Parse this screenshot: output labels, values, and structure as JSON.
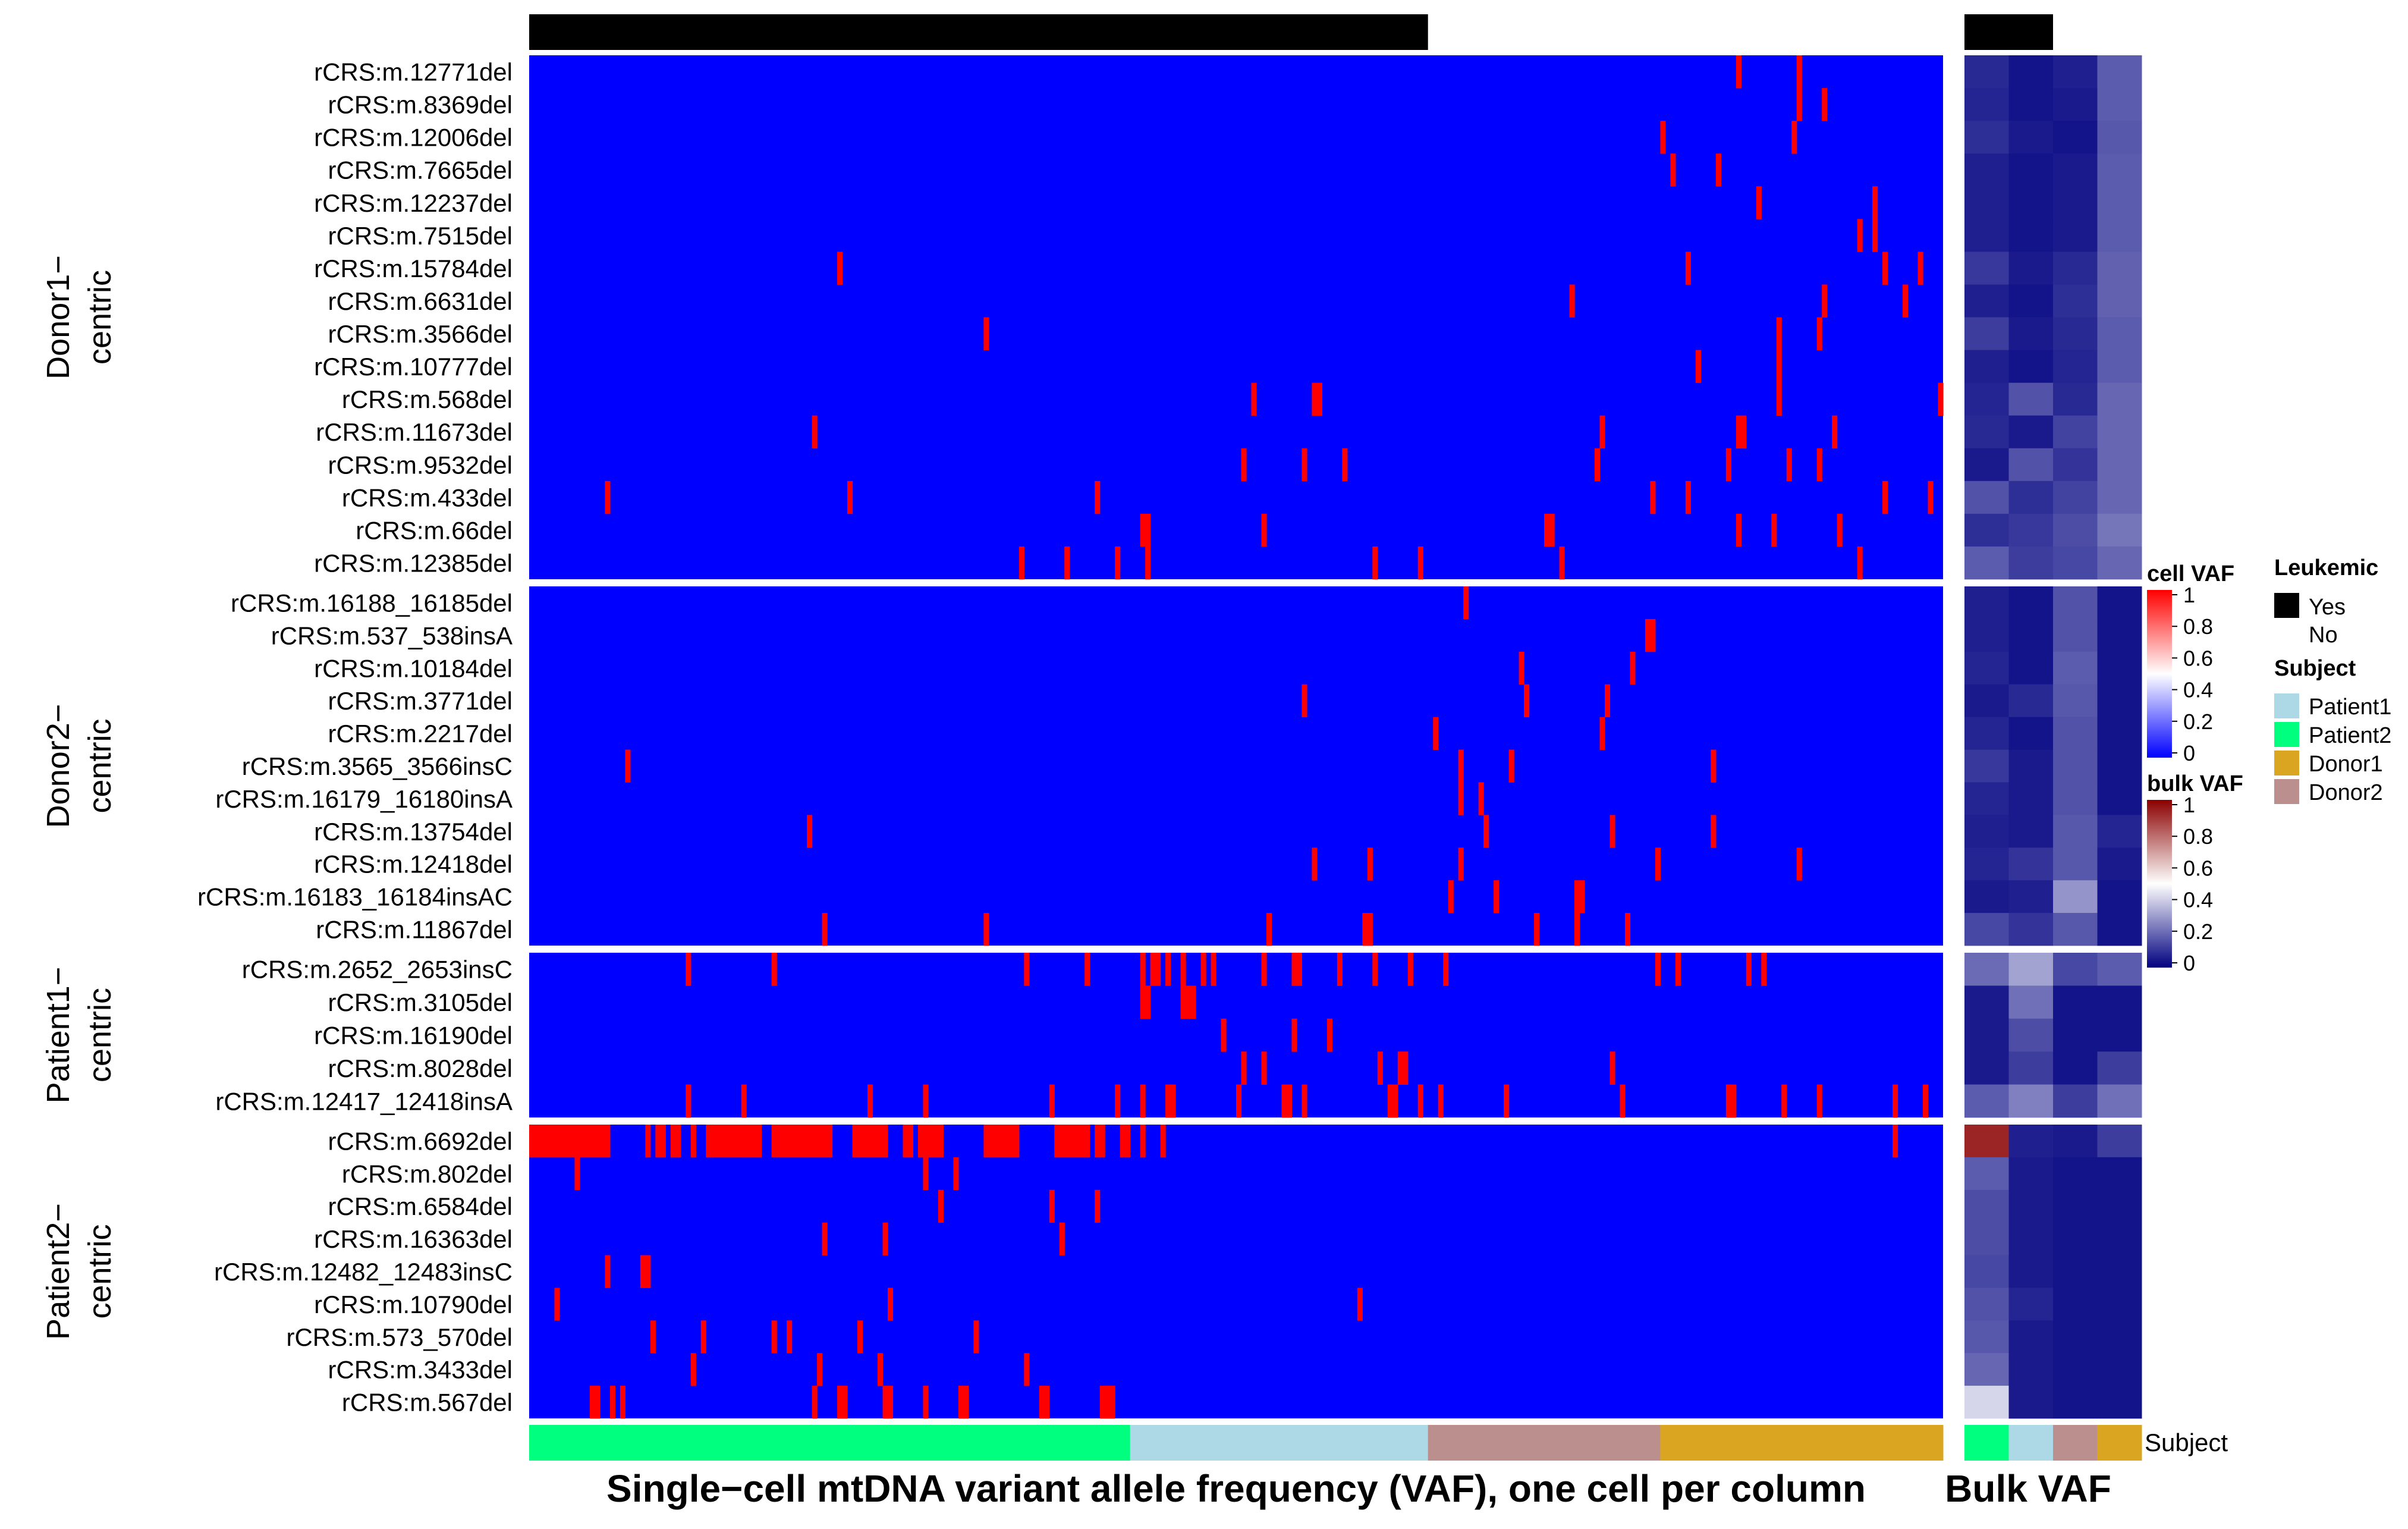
{
  "chart_data": {
    "type": "heatmap",
    "xlabel": "Single−cell mtDNA variant allele frequency (VAF), one cell per column",
    "bulk_label": "Bulk VAF",
    "subject_row_label": "Subject",
    "n_cells": 280,
    "blocks": [
      {
        "title_line1": "Donor1−",
        "title_line2": "centric",
        "variants": [
          "rCRS:m.12771del",
          "rCRS:m.8369del",
          "rCRS:m.12006del",
          "rCRS:m.7665del",
          "rCRS:m.12237del",
          "rCRS:m.7515del",
          "rCRS:m.15784del",
          "rCRS:m.6631del",
          "rCRS:m.3566del",
          "rCRS:m.10777del",
          "rCRS:m.568del",
          "rCRS:m.11673del",
          "rCRS:m.9532del",
          "rCRS:m.433del",
          "rCRS:m.66del",
          "rCRS:m.12385del"
        ]
      },
      {
        "title_line1": "Donor2−",
        "title_line2": "centric",
        "variants": [
          "rCRS:m.16188_16185del",
          "rCRS:m.537_538insA",
          "rCRS:m.10184del",
          "rCRS:m.3771del",
          "rCRS:m.2217del",
          "rCRS:m.3565_3566insC",
          "rCRS:m.16179_16180insA",
          "rCRS:m.13754del",
          "rCRS:m.12418del",
          "rCRS:m.16183_16184insAC",
          "rCRS:m.11867del"
        ]
      },
      {
        "title_line1": "Patient1−",
        "title_line2": "centric",
        "variants": [
          "rCRS:m.2652_2653insC",
          "rCRS:m.3105del",
          "rCRS:m.16190del",
          "rCRS:m.8028del",
          "rCRS:m.12417_12418insA"
        ]
      },
      {
        "title_line1": "Patient2−",
        "title_line2": "centric",
        "variants": [
          "rCRS:m.6692del",
          "rCRS:m.802del",
          "rCRS:m.6584del",
          "rCRS:m.16363del",
          "rCRS:m.12482_12483insC",
          "rCRS:m.10790del",
          "rCRS:m.573_570del",
          "rCRS:m.3433del",
          "rCRS:m.567del"
        ]
      }
    ],
    "cells_by_subject": [
      {
        "subject": "Patient2",
        "count": 119
      },
      {
        "subject": "Patient1",
        "count": 59
      },
      {
        "subject": "Donor2",
        "count": 46
      },
      {
        "subject": "Donor1",
        "count": 56
      }
    ],
    "leukemic_cells": 178,
    "bulk_columns": [
      {
        "subject": "Patient2",
        "leukemic": "Yes"
      },
      {
        "subject": "Patient1",
        "leukemic": "Yes"
      },
      {
        "subject": "Donor2",
        "leukemic": "No"
      },
      {
        "subject": "Donor1",
        "leukemic": "No"
      }
    ],
    "cell_vaf_positive": [
      [
        239,
        251
      ],
      [
        251,
        256
      ],
      [
        224,
        250
      ],
      [
        226,
        235
      ],
      [
        243,
        266
      ],
      [
        263,
        266
      ],
      [
        61,
        229,
        268,
        275
      ],
      [
        206,
        256,
        272
      ],
      [
        90,
        247,
        255
      ],
      [
        231,
        247
      ],
      [
        143,
        155,
        156,
        247,
        279
      ],
      [
        56,
        212,
        239,
        240,
        258
      ],
      [
        141,
        153,
        161,
        211,
        237,
        249,
        255
      ],
      [
        15,
        63,
        112,
        222,
        229,
        268,
        277
      ],
      [
        121,
        122,
        145,
        201,
        202,
        239,
        246,
        259
      ],
      [
        97,
        106,
        116,
        122,
        167,
        176,
        204,
        263
      ],
      [
        185
      ],
      [
        221,
        222
      ],
      [
        196,
        218
      ],
      [
        153,
        197,
        213
      ],
      [
        179,
        212
      ],
      [
        19,
        184,
        194,
        234
      ],
      [
        184,
        188
      ],
      [
        55,
        189,
        214,
        234
      ],
      [
        155,
        166,
        184,
        223,
        251
      ],
      [
        182,
        191,
        207,
        208
      ],
      [
        58,
        90,
        146,
        165,
        166,
        199,
        207,
        217
      ],
      [
        31,
        48,
        98,
        110,
        121,
        123,
        124,
        126,
        129,
        133,
        135,
        145,
        151,
        152,
        160,
        167,
        174,
        181,
        223,
        227,
        241,
        244
      ],
      [
        121,
        122,
        129,
        130,
        131
      ],
      [
        137,
        151,
        158
      ],
      [
        141,
        145,
        168,
        172,
        173,
        214
      ],
      [
        31,
        42,
        67,
        78,
        103,
        116,
        121,
        126,
        127,
        140,
        149,
        150,
        153,
        170,
        171,
        176,
        180,
        193,
        216,
        237,
        238,
        248,
        255,
        270,
        276
      ],
      [
        0,
        1,
        2,
        3,
        4,
        5,
        6,
        7,
        8,
        9,
        10,
        11,
        12,
        13,
        14,
        15,
        23,
        25,
        26,
        28,
        29,
        32,
        35,
        36,
        37,
        38,
        39,
        40,
        41,
        42,
        43,
        44,
        45,
        48,
        49,
        50,
        51,
        52,
        53,
        54,
        55,
        56,
        57,
        58,
        59,
        64,
        65,
        66,
        67,
        68,
        69,
        70,
        74,
        75,
        77,
        78,
        79,
        80,
        81,
        90,
        91,
        92,
        93,
        94,
        95,
        96,
        104,
        105,
        106,
        107,
        108,
        109,
        110,
        112,
        113,
        117,
        118,
        121,
        125,
        270
      ],
      [
        9,
        78,
        84
      ],
      [
        81,
        103,
        112
      ],
      [
        58,
        70,
        105
      ],
      [
        15,
        22,
        23
      ],
      [
        5,
        71,
        164
      ],
      [
        24,
        34,
        48,
        51,
        65,
        88
      ],
      [
        32,
        57,
        69,
        98
      ],
      [
        12,
        13,
        16,
        18,
        56,
        61,
        62,
        70,
        71,
        78,
        85,
        86,
        101,
        102,
        113,
        114,
        115
      ]
    ],
    "bulk_vaf": [
      [
        0.08,
        0.04,
        0.06,
        0.18
      ],
      [
        0.07,
        0.04,
        0.05,
        0.18
      ],
      [
        0.09,
        0.05,
        0.04,
        0.17
      ],
      [
        0.06,
        0.04,
        0.05,
        0.18
      ],
      [
        0.06,
        0.04,
        0.05,
        0.18
      ],
      [
        0.06,
        0.04,
        0.05,
        0.18
      ],
      [
        0.11,
        0.05,
        0.08,
        0.19
      ],
      [
        0.06,
        0.04,
        0.09,
        0.19
      ],
      [
        0.12,
        0.05,
        0.08,
        0.18
      ],
      [
        0.06,
        0.04,
        0.07,
        0.18
      ],
      [
        0.07,
        0.16,
        0.08,
        0.2
      ],
      [
        0.08,
        0.05,
        0.13,
        0.2
      ],
      [
        0.05,
        0.16,
        0.1,
        0.2
      ],
      [
        0.16,
        0.09,
        0.13,
        0.2
      ],
      [
        0.09,
        0.11,
        0.15,
        0.23
      ],
      [
        0.18,
        0.12,
        0.14,
        0.2
      ],
      [
        0.06,
        0.04,
        0.16,
        0.04
      ],
      [
        0.06,
        0.04,
        0.16,
        0.04
      ],
      [
        0.07,
        0.04,
        0.18,
        0.04
      ],
      [
        0.05,
        0.08,
        0.17,
        0.04
      ],
      [
        0.07,
        0.04,
        0.16,
        0.04
      ],
      [
        0.11,
        0.05,
        0.16,
        0.04
      ],
      [
        0.07,
        0.05,
        0.16,
        0.04
      ],
      [
        0.06,
        0.05,
        0.17,
        0.07
      ],
      [
        0.07,
        0.1,
        0.17,
        0.05
      ],
      [
        0.05,
        0.06,
        0.29,
        0.04
      ],
      [
        0.14,
        0.1,
        0.17,
        0.04
      ],
      [
        0.21,
        0.32,
        0.14,
        0.18
      ],
      [
        0.05,
        0.22,
        0.04,
        0.04
      ],
      [
        0.05,
        0.15,
        0.04,
        0.04
      ],
      [
        0.05,
        0.12,
        0.04,
        0.12
      ],
      [
        0.18,
        0.25,
        0.12,
        0.22
      ],
      [
        0.93,
        0.06,
        0.05,
        0.12
      ],
      [
        0.18,
        0.05,
        0.04,
        0.04
      ],
      [
        0.15,
        0.05,
        0.04,
        0.04
      ],
      [
        0.15,
        0.05,
        0.04,
        0.04
      ],
      [
        0.14,
        0.05,
        0.04,
        0.04
      ],
      [
        0.16,
        0.07,
        0.04,
        0.04
      ],
      [
        0.17,
        0.05,
        0.04,
        0.04
      ],
      [
        0.2,
        0.05,
        0.04,
        0.04
      ],
      [
        0.42,
        0.05,
        0.04,
        0.04
      ]
    ],
    "vaf_scale": [
      0,
      1
    ]
  },
  "legend": {
    "cell_vaf": {
      "title": "cell VAF",
      "ticks": [
        "1",
        "0.8",
        "0.6",
        "0.4",
        "0.2",
        "0"
      ],
      "colors": [
        "#0000ff",
        "#ffffff",
        "#ff0000"
      ]
    },
    "bulk_vaf": {
      "title": "bulk VAF",
      "ticks": [
        "1",
        "0.8",
        "0.6",
        "0.4",
        "0.2",
        "0"
      ],
      "colors": [
        "#000080",
        "#ffffff",
        "#8b0000"
      ]
    },
    "leukemic": {
      "title": "Leukemic",
      "items": [
        {
          "label": "Yes",
          "color": "#000000"
        },
        {
          "label": "No",
          "color": "#ffffff"
        }
      ]
    },
    "subject": {
      "title": "Subject",
      "items": [
        {
          "label": "Patient1",
          "color": "#add8e6"
        },
        {
          "label": "Patient2",
          "color": "#00ff7f"
        },
        {
          "label": "Donor1",
          "color": "#daa520"
        },
        {
          "label": "Donor2",
          "color": "#bc8f8f"
        }
      ]
    }
  }
}
